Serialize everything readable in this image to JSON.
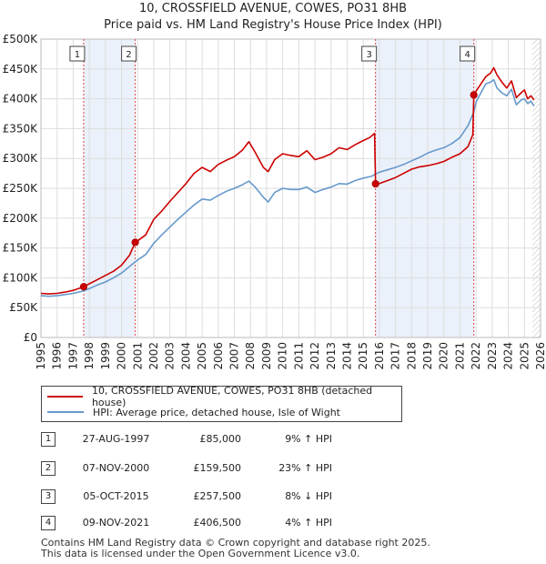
{
  "chart_data": {
    "type": "line",
    "title": "10, CROSSFIELD AVENUE, COWES, PO31 8HB",
    "subtitle": "Price paid vs. HM Land Registry's House Price Index (HPI)",
    "xlabel": "",
    "ylabel": "",
    "xlim": [
      1995,
      2026
    ],
    "ylim": [
      0,
      500000
    ],
    "y_ticks": [
      0,
      50000,
      100000,
      150000,
      200000,
      250000,
      300000,
      350000,
      400000,
      450000,
      500000
    ],
    "y_tick_labels": [
      "£0",
      "£50K",
      "£100K",
      "£150K",
      "£200K",
      "£250K",
      "£300K",
      "£350K",
      "£400K",
      "£450K",
      "£500K"
    ],
    "x_ticks": [
      1995,
      1996,
      1997,
      1998,
      1999,
      2000,
      2001,
      2002,
      2003,
      2004,
      2005,
      2006,
      2007,
      2008,
      2009,
      2010,
      2011,
      2012,
      2013,
      2014,
      2015,
      2016,
      2017,
      2018,
      2019,
      2020,
      2021,
      2022,
      2023,
      2024,
      2025,
      2026
    ],
    "x_tick_labels": [
      "1995",
      "1996",
      "1997",
      "1998",
      "1999",
      "2000",
      "2001",
      "2002",
      "2003",
      "2004",
      "2005",
      "2006",
      "2007",
      "2008",
      "2009",
      "2010",
      "2011",
      "2012",
      "2013",
      "2014",
      "2015",
      "2016",
      "2017",
      "2018",
      "2019",
      "2020",
      "2021",
      "2022",
      "2023",
      "2024",
      "2025",
      "2026"
    ],
    "grid": true,
    "series": [
      {
        "name": "10, CROSSFIELD AVENUE, COWES, PO31 8HB (detached house)",
        "color": "#cc0000",
        "x": [
          1995.0,
          1995.5,
          1996.0,
          1996.5,
          1997.0,
          1997.65,
          1998.0,
          1998.5,
          1999.0,
          1999.5,
          2000.0,
          2000.5,
          2000.85,
          2001.0,
          2001.5,
          2002.0,
          2002.5,
          2003.0,
          2003.5,
          2004.0,
          2004.5,
          2005.0,
          2005.5,
          2006.0,
          2006.5,
          2007.0,
          2007.5,
          2007.9,
          2008.3,
          2008.8,
          2009.1,
          2009.5,
          2010.0,
          2010.5,
          2011.0,
          2011.5,
          2012.0,
          2012.5,
          2013.0,
          2013.5,
          2014.0,
          2014.5,
          2015.0,
          2015.4,
          2015.7,
          2015.76,
          2016.0,
          2016.5,
          2017.0,
          2017.5,
          2018.0,
          2018.5,
          2019.0,
          2019.5,
          2020.0,
          2020.5,
          2021.0,
          2021.5,
          2021.8,
          2021.86,
          2022.0,
          2022.3,
          2022.6,
          2022.9,
          2023.1,
          2023.3,
          2023.6,
          2023.9,
          2024.2,
          2024.5,
          2024.8,
          2025.0,
          2025.2,
          2025.4,
          2025.6
        ],
        "values": [
          74000,
          73000,
          74000,
          76000,
          79000,
          85000,
          90000,
          97000,
          104000,
          111000,
          121000,
          138000,
          159500,
          162000,
          172000,
          198000,
          212000,
          228000,
          243000,
          258000,
          275000,
          285000,
          278000,
          290000,
          297000,
          303000,
          314000,
          328000,
          310000,
          285000,
          278000,
          298000,
          308000,
          305000,
          303000,
          313000,
          298000,
          302000,
          308000,
          318000,
          315000,
          323000,
          330000,
          335000,
          342000,
          257500,
          258000,
          263000,
          268000,
          275000,
          282000,
          286000,
          288000,
          291000,
          295000,
          302000,
          308000,
          320000,
          340000,
          406500,
          413000,
          425000,
          437000,
          443000,
          452000,
          440000,
          428000,
          418000,
          430000,
          402000,
          410000,
          415000,
          400000,
          405000,
          398000
        ]
      },
      {
        "name": "HPI: Average price, detached house, Isle of Wight",
        "color": "#6699cc",
        "x": [
          1995.0,
          1995.5,
          1996.0,
          1996.5,
          1997.0,
          1997.65,
          1998.0,
          1998.5,
          1999.0,
          1999.5,
          2000.0,
          2000.5,
          2001.0,
          2001.5,
          2002.0,
          2002.5,
          2003.0,
          2003.5,
          2004.0,
          2004.5,
          2005.0,
          2005.5,
          2006.0,
          2006.5,
          2007.0,
          2007.5,
          2007.9,
          2008.3,
          2008.8,
          2009.1,
          2009.5,
          2010.0,
          2010.5,
          2011.0,
          2011.5,
          2012.0,
          2012.5,
          2013.0,
          2013.5,
          2014.0,
          2014.5,
          2015.0,
          2015.5,
          2015.76,
          2016.0,
          2016.5,
          2017.0,
          2017.5,
          2018.0,
          2018.5,
          2019.0,
          2019.5,
          2020.0,
          2020.5,
          2021.0,
          2021.5,
          2021.86,
          2022.0,
          2022.3,
          2022.6,
          2022.9,
          2023.1,
          2023.3,
          2023.6,
          2023.9,
          2024.2,
          2024.5,
          2024.8,
          2025.0,
          2025.2,
          2025.4,
          2025.6
        ],
        "values": [
          70000,
          69000,
          70000,
          72000,
          74000,
          78000,
          82000,
          88000,
          93000,
          100000,
          108000,
          119000,
          130000,
          139000,
          158000,
          172000,
          185000,
          198000,
          210000,
          222000,
          232000,
          230000,
          238000,
          245000,
          250000,
          256000,
          262000,
          252000,
          235000,
          227000,
          243000,
          250000,
          248000,
          248000,
          252000,
          243000,
          248000,
          252000,
          258000,
          257000,
          263000,
          267000,
          270000,
          274000,
          277000,
          281000,
          285000,
          290000,
          296000,
          302000,
          309000,
          314000,
          318000,
          325000,
          335000,
          355000,
          378000,
          395000,
          410000,
          425000,
          428000,
          432000,
          418000,
          410000,
          405000,
          416000,
          390000,
          398000,
          400000,
          392000,
          396000,
          388000
        ]
      }
    ],
    "annotations": [
      {
        "label": "1",
        "x": 1997.65,
        "y": 85000
      },
      {
        "label": "2",
        "x": 2000.85,
        "y": 159500
      },
      {
        "label": "3",
        "x": 2015.76,
        "y": 257500
      },
      {
        "label": "4",
        "x": 2021.86,
        "y": 406500
      }
    ]
  },
  "legend": {
    "property_label": "10, CROSSFIELD AVENUE, COWES, PO31 8HB (detached house)",
    "hpi_label": "HPI: Average price, detached house, Isle of Wight",
    "property_color": "#cc0000",
    "hpi_color": "#6699cc"
  },
  "transactions": [
    {
      "num": "1",
      "date": "27-AUG-1997",
      "price": "£85,000",
      "hpi": "9% ↑ HPI"
    },
    {
      "num": "2",
      "date": "07-NOV-2000",
      "price": "£159,500",
      "hpi": "23% ↑ HPI"
    },
    {
      "num": "3",
      "date": "05-OCT-2015",
      "price": "£257,500",
      "hpi": "8% ↓ HPI"
    },
    {
      "num": "4",
      "date": "09-NOV-2021",
      "price": "£406,500",
      "hpi": "4% ↑ HPI"
    }
  ],
  "footer": {
    "line1": "Contains HM Land Registry data © Crown copyright and database right 2025.",
    "line2": "This data is licensed under the Open Government Licence v3.0."
  }
}
